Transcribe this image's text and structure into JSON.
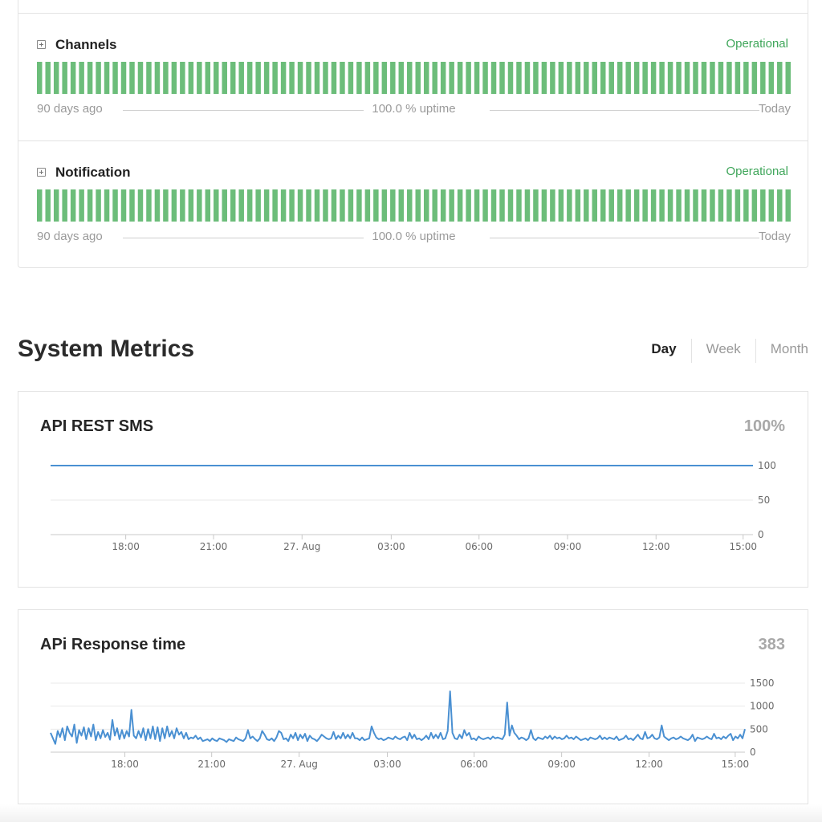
{
  "components": [
    {
      "name": "Channels",
      "status": "Operational",
      "left_label": "90 days ago",
      "uptime": "100.0 % uptime",
      "right_label": "Today"
    },
    {
      "name": "Notification",
      "status": "Operational",
      "left_label": "90 days ago",
      "uptime": "100.0 % uptime",
      "right_label": "Today"
    }
  ],
  "colors": {
    "operational": "#3fa65a",
    "bar": "#6cbd7a",
    "series": "#4a90d2"
  },
  "metrics": {
    "title": "System Metrics",
    "tabs": [
      {
        "label": "Day",
        "active": true
      },
      {
        "label": "Week",
        "active": false
      },
      {
        "label": "Month",
        "active": false
      }
    ]
  },
  "chart_data": [
    {
      "type": "line",
      "title": "API REST SMS",
      "summary": "100%",
      "x_ticks": [
        "18:00",
        "21:00",
        "27. Aug",
        "03:00",
        "06:00",
        "09:00",
        "12:00",
        "15:00"
      ],
      "y_ticks": [
        "100",
        "50",
        "0"
      ],
      "ylim": [
        0,
        100
      ],
      "series": [
        {
          "values": [
            100,
            100
          ]
        }
      ]
    },
    {
      "type": "line",
      "title": "APi Response time",
      "summary": "383",
      "x_ticks": [
        "18:00",
        "21:00",
        "27. Aug",
        "03:00",
        "06:00",
        "09:00",
        "12:00",
        "15:00"
      ],
      "y_ticks": [
        "1500",
        "1000",
        "500",
        "0"
      ],
      "ylim": [
        0,
        1500
      ],
      "series": [
        {
          "values": [
            420,
            300,
            180,
            460,
            330,
            520,
            260,
            560,
            420,
            340,
            600,
            200,
            480,
            360,
            540,
            280,
            520,
            340,
            600,
            260,
            440,
            300,
            480,
            330,
            420,
            270,
            700,
            360,
            520,
            280,
            480,
            300,
            460,
            340,
            920,
            360,
            300,
            460,
            320,
            520,
            260,
            500,
            300,
            560,
            280,
            540,
            240,
            520,
            300,
            560,
            340,
            460,
            300,
            520,
            380,
            440,
            300,
            420,
            280,
            320,
            300,
            360,
            280,
            320,
            240,
            260,
            280,
            240,
            300,
            260,
            240,
            300,
            280,
            260,
            220,
            280,
            260,
            240,
            320,
            280,
            260,
            240,
            300,
            480,
            300,
            340,
            280,
            240,
            300,
            460,
            380,
            280,
            260,
            300,
            240,
            320,
            460,
            420,
            280,
            300,
            240,
            380,
            300,
            420,
            260,
            380,
            300,
            400,
            240,
            360,
            300,
            280,
            240,
            300,
            380,
            340,
            300,
            280,
            300,
            440,
            280,
            360,
            300,
            420,
            300,
            380,
            300,
            420,
            300,
            300,
            260,
            320,
            260,
            280,
            300,
            560,
            420,
            320,
            280,
            300,
            260,
            280,
            320,
            300,
            280,
            340,
            300,
            280,
            320,
            340,
            260,
            420,
            300,
            380,
            280,
            300,
            260,
            300,
            360,
            280,
            420,
            300,
            380,
            300,
            420,
            280,
            300,
            460,
            1320,
            420,
            300,
            280,
            380,
            300,
            480,
            360,
            420,
            280,
            300,
            260,
            340,
            300,
            280,
            300,
            320,
            280,
            340,
            300,
            320,
            300,
            280,
            380,
            1080,
            360,
            580,
            420,
            360,
            280,
            320,
            300,
            260,
            300,
            480,
            300,
            260,
            320,
            300,
            280,
            340,
            300,
            360,
            280,
            340,
            300,
            320,
            280,
            300,
            360,
            300,
            320,
            280,
            340,
            300,
            260,
            280,
            300,
            260,
            320,
            300,
            280,
            300,
            360,
            280,
            320,
            280,
            320,
            300,
            280,
            340,
            260,
            280,
            300,
            360,
            280,
            300,
            260,
            320,
            380,
            300,
            280,
            440,
            300,
            320,
            380,
            300,
            280,
            320,
            580,
            340,
            300,
            260,
            300,
            320,
            280,
            300,
            340,
            300,
            280,
            260,
            300,
            380,
            240,
            320,
            300,
            280,
            300,
            340,
            300,
            280,
            400,
            300,
            320,
            280,
            340,
            300,
            360,
            400,
            260,
            340,
            300,
            380,
            300,
            500
          ]
        }
      ]
    }
  ]
}
